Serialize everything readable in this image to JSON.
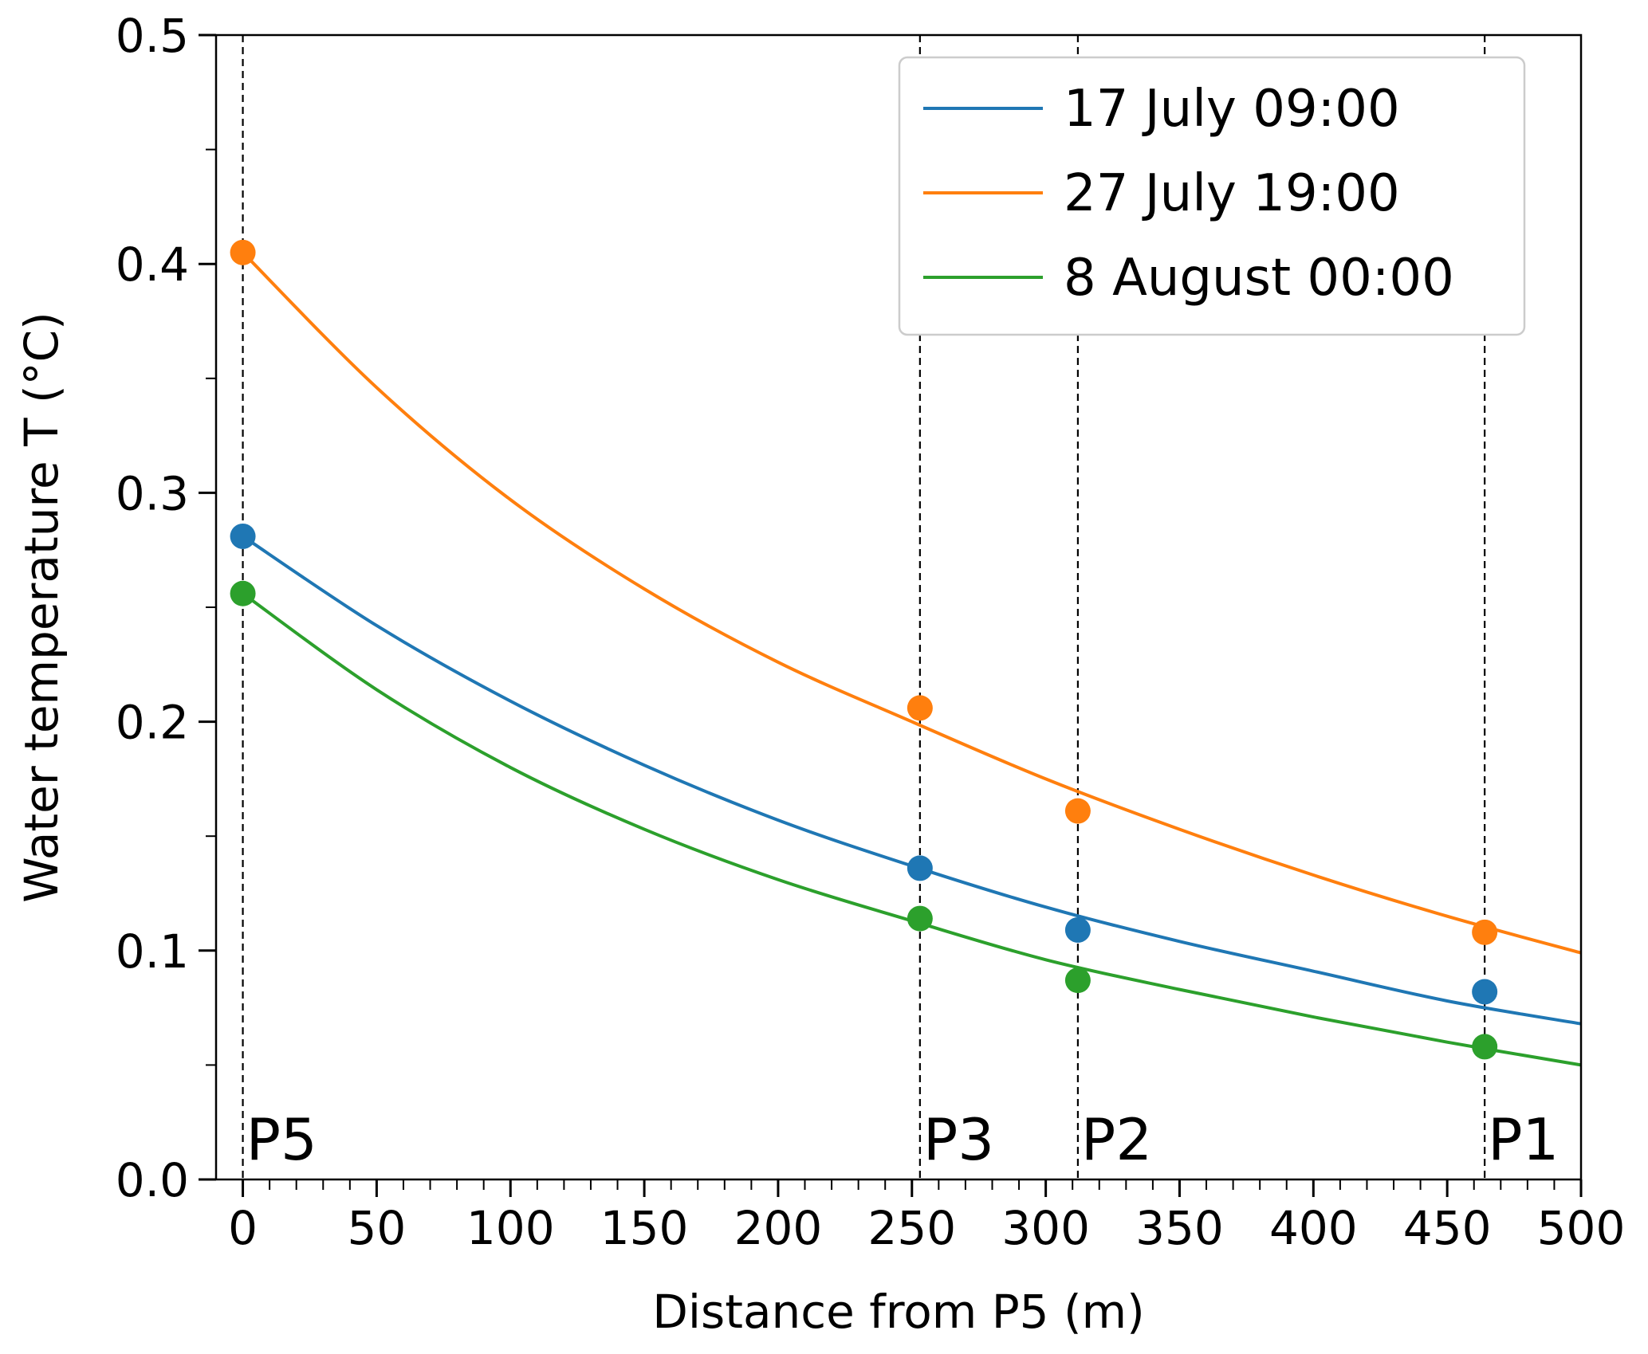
{
  "chart_data": {
    "type": "line",
    "title": "",
    "xlabel": "Distance from P5 (m)",
    "ylabel": "Water temperature  T (°C)",
    "xlim": [
      -10,
      500
    ],
    "ylim": [
      0.0,
      0.5
    ],
    "xticks": [
      0,
      50,
      100,
      150,
      200,
      250,
      300,
      350,
      400,
      450,
      500
    ],
    "xtick_labels": [
      "0",
      "50",
      "100",
      "150",
      "200",
      "250",
      "300",
      "350",
      "400",
      "450",
      "500"
    ],
    "xminor_step": 10,
    "yticks": [
      0.0,
      0.1,
      0.2,
      0.3,
      0.4,
      0.5
    ],
    "ytick_labels": [
      "0.0",
      "0.1",
      "0.2",
      "0.3",
      "0.4",
      "0.5"
    ],
    "yminor_step": 0.05,
    "grid": false,
    "legend_position": "top-right",
    "reference_lines": [
      {
        "label": "P5",
        "x": 0
      },
      {
        "label": "P3",
        "x": 253
      },
      {
        "label": "P2",
        "x": 312
      },
      {
        "label": "P1",
        "x": 464
      }
    ],
    "series": [
      {
        "name": "17 July 09:00",
        "color": "#1f77b4",
        "points": {
          "x": [
            0,
            253,
            312,
            464
          ],
          "y": [
            0.281,
            0.136,
            0.109,
            0.082
          ]
        },
        "fit_curve": {
          "x": [
            0,
            50,
            100,
            150,
            200,
            250,
            300,
            350,
            400,
            450,
            500
          ],
          "y": [
            0.281,
            0.242,
            0.209,
            0.181,
            0.157,
            0.137,
            0.119,
            0.104,
            0.091,
            0.078,
            0.068
          ]
        }
      },
      {
        "name": "27 July 19:00",
        "color": "#ff7f0e",
        "points": {
          "x": [
            0,
            253,
            312,
            464
          ],
          "y": [
            0.405,
            0.206,
            0.161,
            0.108
          ]
        },
        "fit_curve": {
          "x": [
            0,
            50,
            100,
            150,
            200,
            250,
            300,
            350,
            400,
            450,
            500
          ],
          "y": [
            0.405,
            0.346,
            0.297,
            0.258,
            0.226,
            0.2,
            0.175,
            0.153,
            0.133,
            0.115,
            0.099
          ]
        }
      },
      {
        "name": "8 August 00:00",
        "color": "#2ca02c",
        "points": {
          "x": [
            0,
            253,
            312,
            464
          ],
          "y": [
            0.256,
            0.114,
            0.087,
            0.058
          ]
        },
        "fit_curve": {
          "x": [
            0,
            50,
            100,
            150,
            200,
            250,
            300,
            350,
            400,
            450,
            500
          ],
          "y": [
            0.256,
            0.214,
            0.18,
            0.153,
            0.131,
            0.113,
            0.096,
            0.083,
            0.071,
            0.06,
            0.05
          ]
        }
      }
    ]
  }
}
